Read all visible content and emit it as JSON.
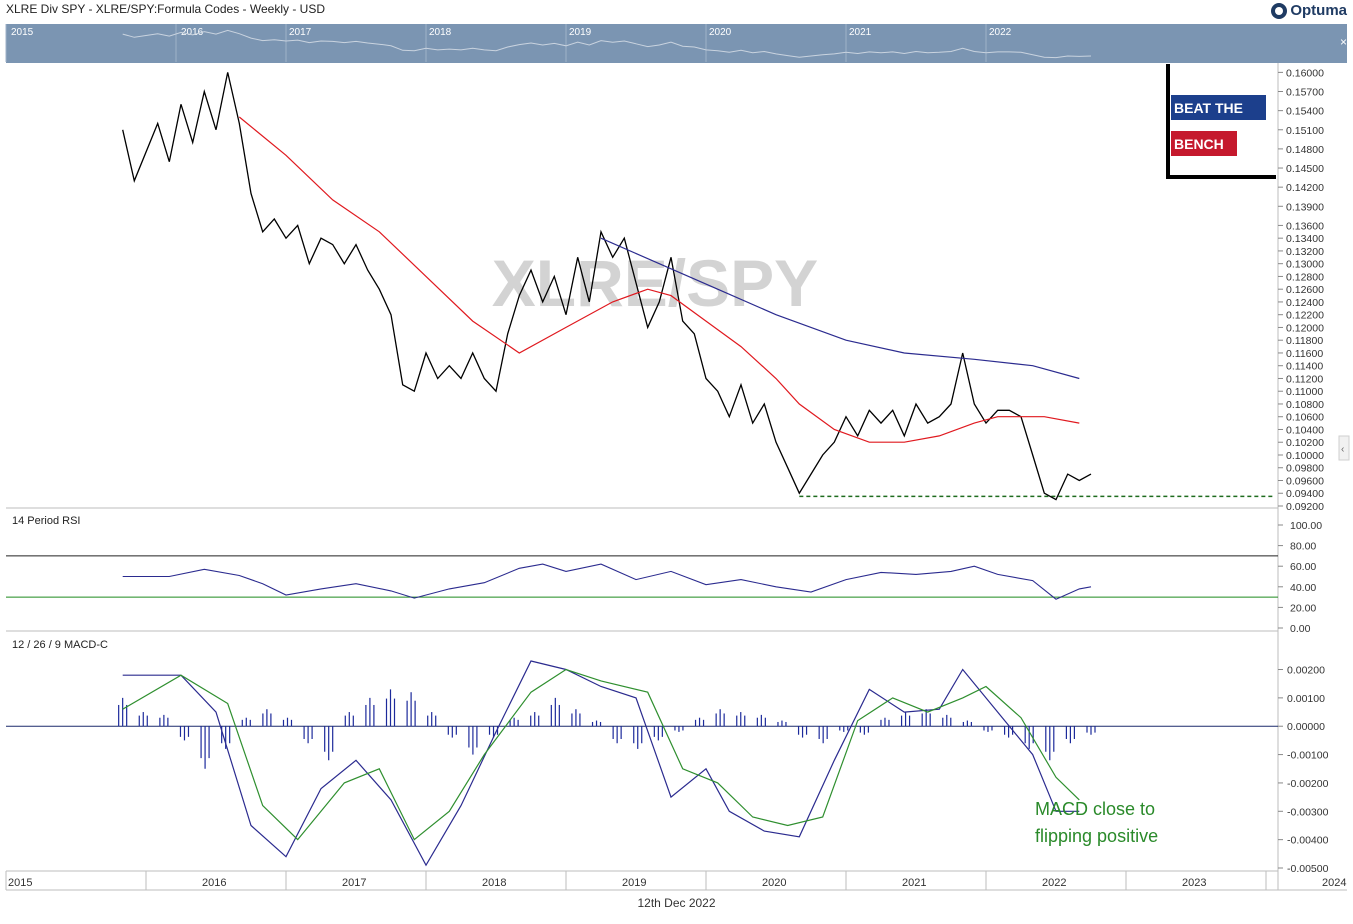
{
  "header": {
    "title": "XLRE Div SPY -  XLRE/SPY:Formula Codes - Weekly - USD",
    "brand": "Optuma"
  },
  "navigator": {
    "year_labels": [
      "2015",
      "2016",
      "2017",
      "2018",
      "2019",
      "2020",
      "2021",
      "2022"
    ]
  },
  "watermark": "XLRE/SPY",
  "badge": {
    "line1": "BEAT THE",
    "line2": "BENCH"
  },
  "footer_date": "12th Dec 2022",
  "chart_data": [
    {
      "type": "line",
      "panel": "price",
      "series": [
        {
          "name": "XLRE/SPY",
          "color": "#000000",
          "points": [
            [
              "2015-11",
              0.151
            ],
            [
              "2015-12",
              0.143
            ],
            [
              "2016-02",
              0.152
            ],
            [
              "2016-03",
              0.146
            ],
            [
              "2016-04",
              0.155
            ],
            [
              "2016-05",
              0.149
            ],
            [
              "2016-06",
              0.157
            ],
            [
              "2016-07",
              0.151
            ],
            [
              "2016-08",
              0.16
            ],
            [
              "2016-09",
              0.152
            ],
            [
              "2016-10",
              0.141
            ],
            [
              "2016-11",
              0.135
            ],
            [
              "2016-12",
              0.137
            ],
            [
              "2017-01",
              0.134
            ],
            [
              "2017-02",
              0.136
            ],
            [
              "2017-03",
              0.13
            ],
            [
              "2017-04",
              0.134
            ],
            [
              "2017-05",
              0.133
            ],
            [
              "2017-06",
              0.13
            ],
            [
              "2017-07",
              0.133
            ],
            [
              "2017-08",
              0.129
            ],
            [
              "2017-09",
              0.126
            ],
            [
              "2017-10",
              0.122
            ],
            [
              "2017-11",
              0.111
            ],
            [
              "2017-12",
              0.11
            ],
            [
              "2018-01",
              0.116
            ],
            [
              "2018-02",
              0.112
            ],
            [
              "2018-03",
              0.114
            ],
            [
              "2018-04",
              0.112
            ],
            [
              "2018-05",
              0.116
            ],
            [
              "2018-06",
              0.112
            ],
            [
              "2018-07",
              0.11
            ],
            [
              "2018-08",
              0.119
            ],
            [
              "2018-09",
              0.125
            ],
            [
              "2018-10",
              0.129
            ],
            [
              "2018-11",
              0.124
            ],
            [
              "2018-12",
              0.128
            ],
            [
              "2019-01",
              0.122
            ],
            [
              "2019-02",
              0.131
            ],
            [
              "2019-03",
              0.124
            ],
            [
              "2019-04",
              0.135
            ],
            [
              "2019-05",
              0.131
            ],
            [
              "2019-06",
              0.134
            ],
            [
              "2019-07",
              0.127
            ],
            [
              "2019-08",
              0.12
            ],
            [
              "2019-09",
              0.124
            ],
            [
              "2019-10",
              0.131
            ],
            [
              "2019-11",
              0.121
            ],
            [
              "2019-12",
              0.119
            ],
            [
              "2020-01",
              0.112
            ],
            [
              "2020-02",
              0.11
            ],
            [
              "2020-03",
              0.106
            ],
            [
              "2020-04",
              0.111
            ],
            [
              "2020-05",
              0.105
            ],
            [
              "2020-06",
              0.108
            ],
            [
              "2020-07",
              0.102
            ],
            [
              "2020-08",
              0.098
            ],
            [
              "2020-09",
              0.094
            ],
            [
              "2020-10",
              0.097
            ],
            [
              "2020-11",
              0.1
            ],
            [
              "2020-12",
              0.102
            ],
            [
              "2021-01",
              0.106
            ],
            [
              "2021-02",
              0.103
            ],
            [
              "2021-03",
              0.107
            ],
            [
              "2021-04",
              0.105
            ],
            [
              "2021-05",
              0.107
            ],
            [
              "2021-06",
              0.103
            ],
            [
              "2021-07",
              0.108
            ],
            [
              "2021-08",
              0.105
            ],
            [
              "2021-09",
              0.106
            ],
            [
              "2021-10",
              0.108
            ],
            [
              "2021-11",
              0.116
            ],
            [
              "2021-12",
              0.108
            ],
            [
              "2022-01",
              0.105
            ],
            [
              "2022-02",
              0.107
            ],
            [
              "2022-03",
              0.107
            ],
            [
              "2022-04",
              0.106
            ],
            [
              "2022-05",
              0.1
            ],
            [
              "2022-06",
              0.094
            ],
            [
              "2022-07",
              0.093
            ],
            [
              "2022-08",
              0.097
            ],
            [
              "2022-09",
              0.096
            ],
            [
              "2022-10",
              0.097
            ]
          ]
        },
        {
          "name": "",
          "color": "#e0191f",
          "points": [
            [
              "2016-09",
              0.153
            ],
            [
              "2017-01",
              0.147
            ],
            [
              "2017-05",
              0.14
            ],
            [
              "2017-09",
              0.135
            ],
            [
              "2018-01",
              0.128
            ],
            [
              "2018-05",
              0.121
            ],
            [
              "2018-09",
              0.116
            ],
            [
              "2019-01",
              0.12
            ],
            [
              "2019-05",
              0.124
            ],
            [
              "2019-08",
              0.126
            ],
            [
              "2019-10",
              0.125
            ],
            [
              "2020-01",
              0.121
            ],
            [
              "2020-04",
              0.117
            ],
            [
              "2020-07",
              0.112
            ],
            [
              "2020-09",
              0.108
            ],
            [
              "2020-12",
              0.104
            ],
            [
              "2021-03",
              0.102
            ],
            [
              "2021-06",
              0.102
            ],
            [
              "2021-09",
              0.103
            ],
            [
              "2021-12",
              0.105
            ],
            [
              "2022-02",
              0.106
            ],
            [
              "2022-06",
              0.106
            ],
            [
              "2022-09",
              0.105
            ]
          ]
        },
        {
          "name": "",
          "color": "#2b2b8f",
          "points": [
            [
              "2019-04",
              0.134
            ],
            [
              "2019-09",
              0.13
            ],
            [
              "2020-02",
              0.126
            ],
            [
              "2020-07",
              0.122
            ],
            [
              "2021-01",
              0.118
            ],
            [
              "2021-06",
              0.116
            ],
            [
              "2021-12",
              0.115
            ],
            [
              "2022-05",
              0.114
            ],
            [
              "2022-09",
              0.112
            ]
          ]
        }
      ],
      "support_level": 0.0935,
      "yticks": [
        "0.16000",
        "0.15700",
        "0.15400",
        "0.15100",
        "0.14800",
        "0.14500",
        "0.14200",
        "0.13900",
        "0.13600",
        "0.13400",
        "0.13200",
        "0.13000",
        "0.12800",
        "0.12600",
        "0.12400",
        "0.12200",
        "0.12000",
        "0.11800",
        "0.11600",
        "0.11400",
        "0.11200",
        "0.11000",
        "0.10800",
        "0.10600",
        "0.10400",
        "0.10200",
        "0.10000",
        "0.09800",
        "0.09600",
        "0.09400",
        "0.09200"
      ],
      "ylim": [
        0.092,
        0.161
      ]
    },
    {
      "type": "line",
      "panel": "rsi",
      "title": "14 Period RSI",
      "levels": [
        70,
        30
      ],
      "yticks": [
        "100.00",
        "80.00",
        "60.00",
        "40.00",
        "20.00",
        "0.00"
      ],
      "ylim": [
        0,
        100
      ],
      "series": [
        {
          "name": "",
          "color": "#2b2b8f",
          "points": [
            [
              "2015-11",
              50
            ],
            [
              "2016-03",
              50
            ],
            [
              "2016-06",
              57
            ],
            [
              "2016-09",
              51
            ],
            [
              "2016-11",
              43
            ],
            [
              "2017-01",
              32
            ],
            [
              "2017-04",
              38
            ],
            [
              "2017-07",
              43
            ],
            [
              "2017-10",
              36
            ],
            [
              "2017-12",
              29
            ],
            [
              "2018-03",
              38
            ],
            [
              "2018-06",
              44
            ],
            [
              "2018-09",
              58
            ],
            [
              "2018-11",
              62
            ],
            [
              "2019-01",
              55
            ],
            [
              "2019-04",
              62
            ],
            [
              "2019-07",
              47
            ],
            [
              "2019-10",
              55
            ],
            [
              "2020-01",
              42
            ],
            [
              "2020-04",
              47
            ],
            [
              "2020-07",
              40
            ],
            [
              "2020-10",
              35
            ],
            [
              "2021-01",
              47
            ],
            [
              "2021-04",
              54
            ],
            [
              "2021-07",
              52
            ],
            [
              "2021-10",
              55
            ],
            [
              "2021-12",
              60
            ],
            [
              "2022-02",
              52
            ],
            [
              "2022-05",
              46
            ],
            [
              "2022-07",
              28
            ],
            [
              "2022-09",
              38
            ],
            [
              "2022-10",
              40
            ]
          ]
        }
      ]
    },
    {
      "type": "bar",
      "panel": "macd",
      "title": "12 / 26 / 9 MACD-C",
      "yticks": [
        "0.00200",
        "0.00100",
        "0.00000",
        "-0.00100",
        "-0.00200",
        "-0.00300",
        "-0.00400",
        "-0.00500"
      ],
      "ylim": [
        -0.005,
        0.0029
      ],
      "series": [
        {
          "name": "",
          "color": "#2b2b8f",
          "points": [
            [
              "2015-11",
              0.0018
            ],
            [
              "2016-04",
              0.0018
            ],
            [
              "2016-07",
              0.0005
            ],
            [
              "2016-10",
              -0.0035
            ],
            [
              "2017-01",
              -0.0046
            ],
            [
              "2017-04",
              -0.0022
            ],
            [
              "2017-07",
              -0.0012
            ],
            [
              "2017-10",
              -0.0026
            ],
            [
              "2018-01",
              -0.0049
            ],
            [
              "2018-04",
              -0.0028
            ],
            [
              "2018-07",
              -0.0002
            ],
            [
              "2018-10",
              0.0023
            ],
            [
              "2019-01",
              0.002
            ],
            [
              "2019-04",
              0.0014
            ],
            [
              "2019-07",
              0.001
            ],
            [
              "2019-10",
              -0.0025
            ],
            [
              "2020-01",
              -0.0015
            ],
            [
              "2020-03",
              -0.003
            ],
            [
              "2020-06",
              -0.0037
            ],
            [
              "2020-09",
              -0.0039
            ],
            [
              "2020-12",
              -0.0012
            ],
            [
              "2021-03",
              0.0013
            ],
            [
              "2021-06",
              0.0005
            ],
            [
              "2021-09",
              0.0006
            ],
            [
              "2021-11",
              0.002
            ],
            [
              "2022-02",
              0.0005
            ],
            [
              "2022-05",
              -0.001
            ],
            [
              "2022-07",
              -0.003
            ],
            [
              "2022-09",
              -0.003
            ]
          ]
        },
        {
          "name": "",
          "color": "#2f8f2f",
          "points": [
            [
              "2015-11",
              0.0006
            ],
            [
              "2016-04",
              0.0018
            ],
            [
              "2016-08",
              0.0008
            ],
            [
              "2016-11",
              -0.0028
            ],
            [
              "2017-02",
              -0.004
            ],
            [
              "2017-06",
              -0.002
            ],
            [
              "2017-09",
              -0.0015
            ],
            [
              "2017-12",
              -0.004
            ],
            [
              "2018-03",
              -0.003
            ],
            [
              "2018-06",
              -0.001
            ],
            [
              "2018-10",
              0.0012
            ],
            [
              "2019-01",
              0.002
            ],
            [
              "2019-04",
              0.0016
            ],
            [
              "2019-08",
              0.0012
            ],
            [
              "2019-11",
              -0.0015
            ],
            [
              "2020-02",
              -0.002
            ],
            [
              "2020-05",
              -0.0032
            ],
            [
              "2020-08",
              -0.0035
            ],
            [
              "2020-11",
              -0.0032
            ],
            [
              "2021-02",
              0.0002
            ],
            [
              "2021-05",
              0.001
            ],
            [
              "2021-08",
              0.0005
            ],
            [
              "2021-11",
              0.001
            ],
            [
              "2022-01",
              0.0014
            ],
            [
              "2022-04",
              0.0003
            ],
            [
              "2022-07",
              -0.0018
            ],
            [
              "2022-09",
              -0.0026
            ]
          ]
        }
      ],
      "histogram": [
        0.001,
        0.0005,
        0.0004,
        -0.0005,
        -0.0015,
        -0.0008,
        0.0003,
        0.0006,
        0.0003,
        -0.0006,
        -0.0012,
        0.0005,
        0.001,
        0.0013,
        0.0012,
        0.0005,
        -0.0004,
        -0.001,
        -0.0004,
        0.0003,
        0.0005,
        0.001,
        0.0006,
        0.0002,
        -0.0006,
        -0.0008,
        -0.0005,
        -0.0002,
        0.0003,
        0.0006,
        0.0005,
        0.0004,
        0.0002,
        -0.0004,
        -0.0006,
        -0.0002,
        -0.0003,
        0.0003,
        0.0005,
        0.0006,
        0.0004,
        0.0002,
        -0.0002,
        -0.0004,
        -0.0008,
        -0.0012,
        -0.0006,
        -0.0003
      ],
      "annotation": [
        "MACD close to",
        "flipping positive"
      ]
    }
  ],
  "x_axis": {
    "labels": [
      "2015",
      "2016",
      "2017",
      "2018",
      "2019",
      "2020",
      "2021",
      "2022",
      "2023",
      "2024"
    ]
  }
}
